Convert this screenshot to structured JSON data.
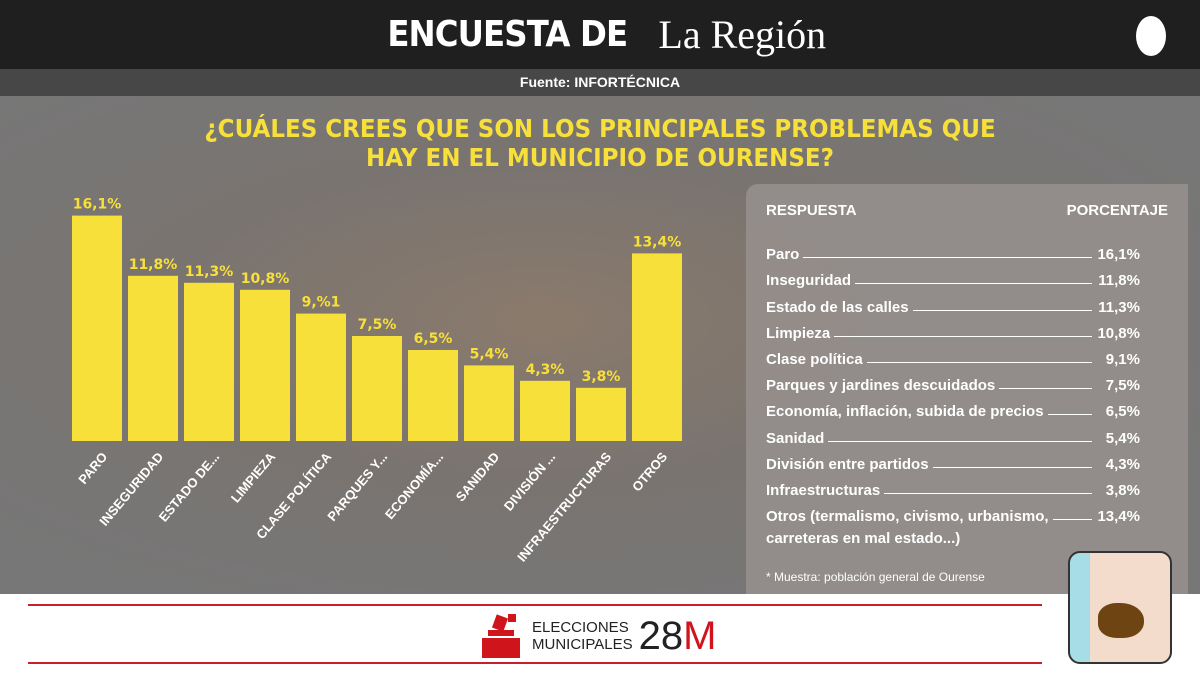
{
  "header": {
    "prefix": "ENCUESTA DE",
    "brand": "La Región",
    "source": "Fuente: INFORTÉCNICA"
  },
  "question": "¿CUÁLES CREES QUE SON LOS PRINCIPALES PROBLEMAS QUE HAY EN EL MUNICIPIO DE OURENSE?",
  "chart_data": {
    "type": "bar",
    "bar_color": "#f7e03a",
    "categories": [
      "PARO",
      "INSEGURIDAD",
      "ESTADO DE...",
      "LIMPIEZA",
      "CLASE POLÍTICA",
      "PARQUES Y...",
      "ECONOMÍA...",
      "SANIDAD",
      "DIVISIÓN ...",
      "INFRAESTRUCTURAS",
      "OTROS"
    ],
    "values": [
      16.1,
      11.8,
      11.3,
      10.8,
      9.1,
      7.5,
      6.5,
      5.4,
      4.3,
      3.8,
      13.4
    ],
    "data_labels": [
      "16,1%",
      "11,8%",
      "11,3%",
      "10,8%",
      "9,%1",
      "7,5%",
      "6,5%",
      "5,4%",
      "4,3%",
      "3,8%",
      "13,4%"
    ]
  },
  "table": {
    "headers": [
      "RESPUESTA",
      "PORCENTAJE"
    ],
    "rows": [
      [
        "Paro",
        "16,1%"
      ],
      [
        "Inseguridad",
        "11,8%"
      ],
      [
        "Estado de las calles",
        "11,3%"
      ],
      [
        "Limpieza",
        "10,8%"
      ],
      [
        "Clase política",
        "9,1%"
      ],
      [
        "Parques y jardines descuidados",
        "7,5%"
      ],
      [
        "Economía, inflación, subida de precios",
        "6,5%"
      ],
      [
        "Sanidad",
        "5,4%"
      ],
      [
        "División entre partidos",
        "4,3%"
      ],
      [
        "Infraestructuras",
        "3,8%"
      ],
      [
        "Otros (termalismo, civismo, urbanismo,",
        "13,4%"
      ]
    ],
    "last_row_cont": "carreteras en mal estado...)",
    "note": "*  Muestra: población general de Ourense"
  },
  "footer": {
    "line1": "ELECCIONES",
    "line2": "MUNICIPALES",
    "num": "28",
    "m": "M",
    "accent": "#d0141c"
  }
}
